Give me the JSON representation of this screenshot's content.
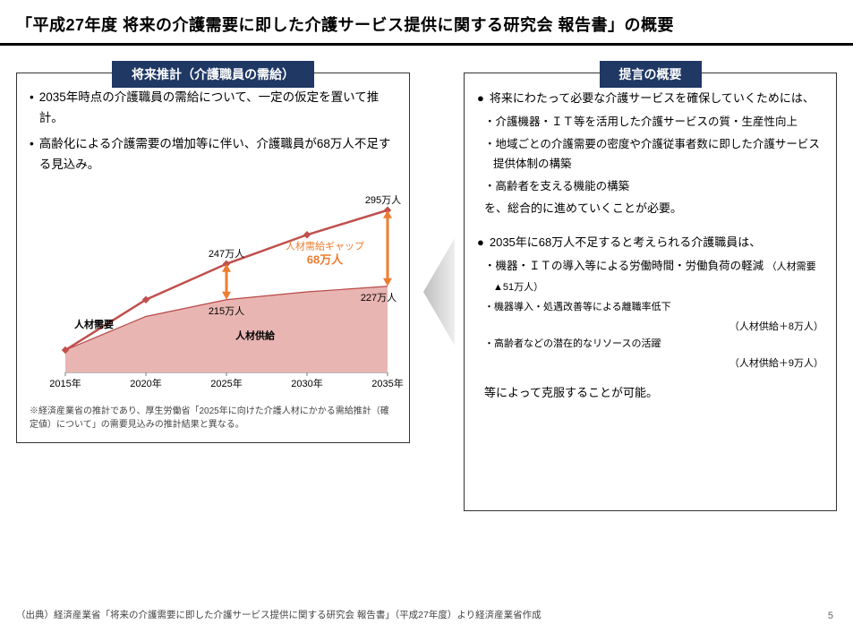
{
  "title": "「平成27年度 将来の介護需要に即した介護サービス提供に関する研究会 報告書」の概要",
  "left": {
    "header": "将来推計（介護職員の需給）",
    "b1": "2035年時点の介護職員の需給について、一定の仮定を置いて推計。",
    "b2": "高齢化による介護需要の増加等に伴い、介護職員が68万人不足する見込み。",
    "footnote": "※経済産業省の推計であり、厚生労働省「2025年に向けた介護人材にかかる需給推計（確定値）について」の需要見込みの推計結果と異なる。"
  },
  "chart": {
    "xlabels": [
      "2015年",
      "2020年",
      "2025年",
      "2030年",
      "2035年"
    ],
    "demand": [
      170,
      215,
      247,
      273,
      295
    ],
    "supply": [
      170,
      200,
      215,
      222,
      227
    ],
    "d_label_2025": "247万人",
    "d_label_2035": "295万人",
    "s_label_2025": "215万人",
    "s_label_2035": "227万人",
    "gap_label1": "人材需給ギャップ",
    "gap_label2": "68万人",
    "legend_demand": "人材需要",
    "legend_supply": "人材供給",
    "demand_color": "#c0504d",
    "supply_fill": "#e8b5b2",
    "supply_line": "#b84a47",
    "gap_arrow_color": "#ed7d31",
    "axis_color": "#777",
    "xlim": [
      2015,
      2035
    ],
    "ylim": [
      150,
      310
    ]
  },
  "right": {
    "header": "提言の概要",
    "b1_lead": "将来にわたって必要な介護サービスを確保していくためには、",
    "b1_s1": "・介護機器・ＩＴ等を活用した介護サービスの質・生産性向上",
    "b1_s2": "・地域ごとの介護需要の密度や介護従事者数に即した介護サービス提供体制の構築",
    "b1_s3": "・高齢者を支える機能の構築",
    "b1_tail": "を、総合的に進めていくことが必要。",
    "b2_lead": "2035年に68万人不足すると考えられる介護職員は、",
    "b2_s1a": "・機器・ＩＴの導入等による労働時間・労働負荷の軽減",
    "b2_s1b": "（人材需要▲51万人）",
    "b2_s2": "・機器導入・処遇改善等による離職率低下",
    "b2_s2r": "（人材供給＋8万人）",
    "b2_s3": "・高齢者などの潜在的なリソースの活躍",
    "b2_s3r": "（人材供給＋9万人）",
    "b2_tail": "等によって克服することが可能。"
  },
  "source": "（出典）経済産業省「将来の介護需要に即した介護サービス提供に関する研究会 報告書」（平成27年度）より経済産業省作成",
  "pagenum": "5"
}
